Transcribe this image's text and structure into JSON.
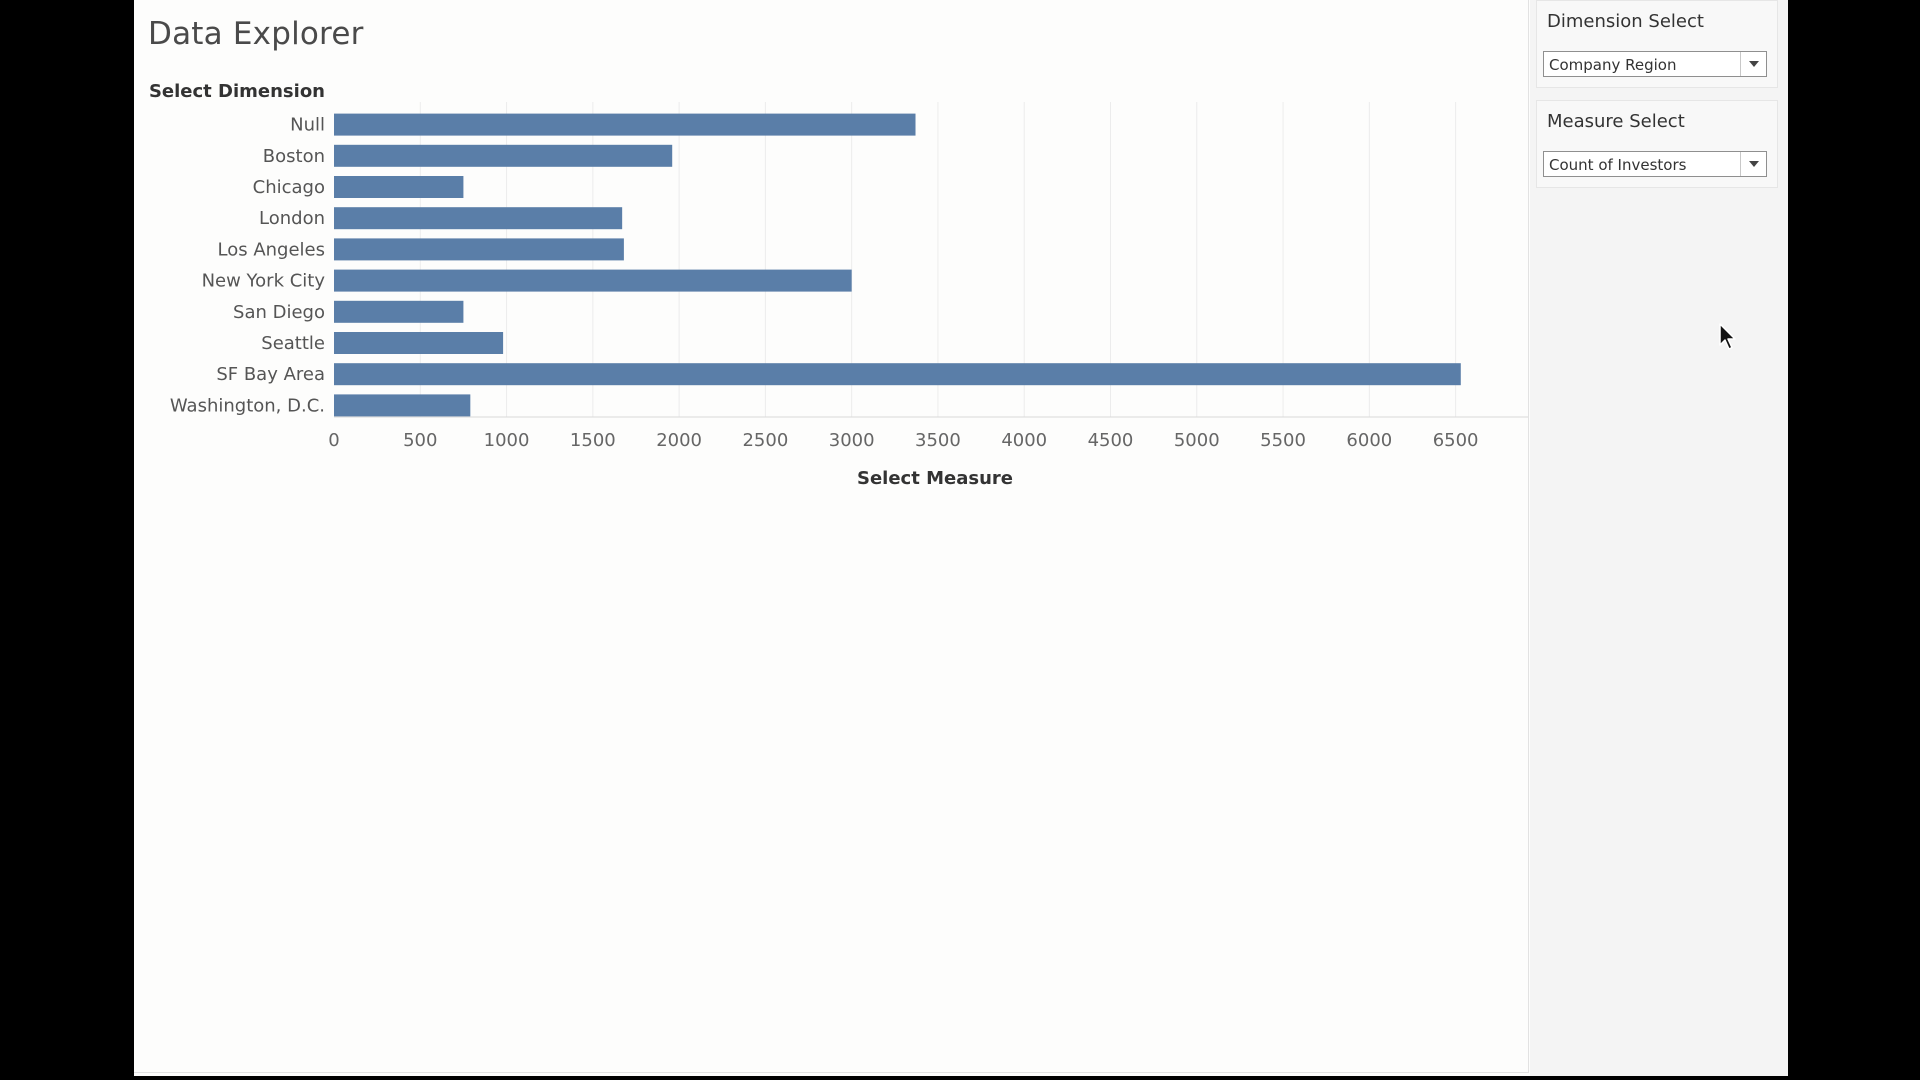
{
  "dashboard": {
    "title": "Data Explorer"
  },
  "filters": {
    "dimension": {
      "title": "Dimension Select",
      "selected": "Company Region"
    },
    "measure": {
      "title": "Measure Select",
      "selected": "Count of Investors"
    }
  },
  "colors": {
    "bar": "#5a7ea8",
    "gridline": "#ececec",
    "background": "#fdfdfc",
    "sidebar": "#f4f4f4"
  },
  "chart_data": {
    "type": "bar",
    "orientation": "horizontal",
    "categories": [
      "Null",
      "Boston",
      "Chicago",
      "London",
      "Los Angeles",
      "New York City",
      "San Diego",
      "Seattle",
      "SF Bay Area",
      "Washington, D.C."
    ],
    "values": [
      3370,
      1960,
      750,
      1670,
      1680,
      3000,
      750,
      980,
      6530,
      790
    ],
    "xlabel": "Select Measure",
    "ylabel": "Select Dimension",
    "xlim": [
      0,
      6850
    ],
    "xticks": [
      0,
      500,
      1000,
      1500,
      2000,
      2500,
      3000,
      3500,
      4000,
      4500,
      5000,
      5500,
      6000,
      6500
    ],
    "grid": "vertical",
    "legend": "none"
  }
}
